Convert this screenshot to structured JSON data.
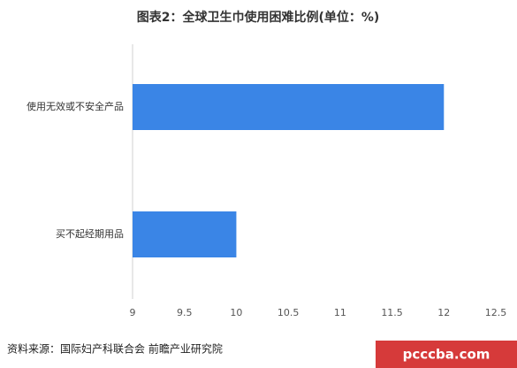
{
  "chart_data": {
    "type": "bar",
    "orientation": "horizontal",
    "title": "图表2：全球卫生巾使用困难比例(单位：%)",
    "categories": [
      "使用无效或不安全产品",
      "买不起经期用品"
    ],
    "values": [
      12,
      10
    ],
    "color": "#3a85e6",
    "xlim": [
      9,
      12.5
    ],
    "xticks": [
      9,
      9.5,
      10,
      10.5,
      11,
      11.5,
      12,
      12.5
    ],
    "source": "资料来源：国际妇产科联合会 前瞻产业研究院",
    "watermark": "pcccba.com"
  }
}
